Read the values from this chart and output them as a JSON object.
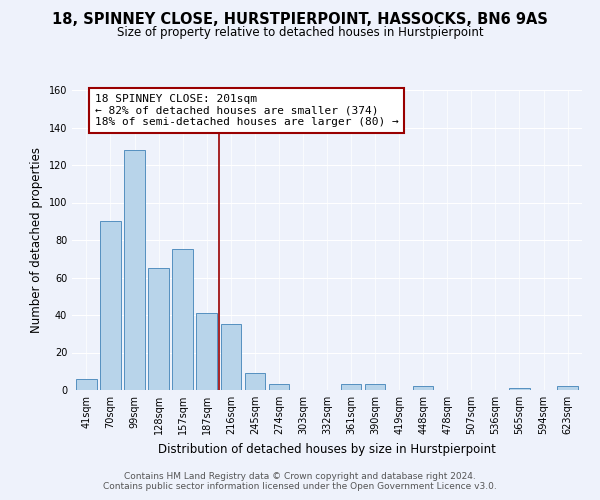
{
  "title": "18, SPINNEY CLOSE, HURSTPIERPOINT, HASSOCKS, BN6 9AS",
  "subtitle": "Size of property relative to detached houses in Hurstpierpoint",
  "xlabel": "Distribution of detached houses by size in Hurstpierpoint",
  "ylabel": "Number of detached properties",
  "categories": [
    "41sqm",
    "70sqm",
    "99sqm",
    "128sqm",
    "157sqm",
    "187sqm",
    "216sqm",
    "245sqm",
    "274sqm",
    "303sqm",
    "332sqm",
    "361sqm",
    "390sqm",
    "419sqm",
    "448sqm",
    "478sqm",
    "507sqm",
    "536sqm",
    "565sqm",
    "594sqm",
    "623sqm"
  ],
  "values": [
    6,
    90,
    128,
    65,
    75,
    41,
    35,
    9,
    3,
    0,
    0,
    3,
    3,
    0,
    2,
    0,
    0,
    0,
    1,
    0,
    2
  ],
  "bar_color": "#b8d4ea",
  "bar_edge_color": "#5590c0",
  "vline_x_index": 5.5,
  "vline_color": "#990000",
  "annotation_line1": "18 SPINNEY CLOSE: 201sqm",
  "annotation_line2": "← 82% of detached houses are smaller (374)",
  "annotation_line3": "18% of semi-detached houses are larger (80) →",
  "annotation_box_color": "#ffffff",
  "annotation_box_edge_color": "#990000",
  "ylim": [
    0,
    160
  ],
  "yticks": [
    0,
    20,
    40,
    60,
    80,
    100,
    120,
    140,
    160
  ],
  "footer1": "Contains HM Land Registry data © Crown copyright and database right 2024.",
  "footer2": "Contains public sector information licensed under the Open Government Licence v3.0.",
  "bg_color": "#eef2fb",
  "title_fontsize": 10.5,
  "subtitle_fontsize": 8.5,
  "axis_label_fontsize": 8.5,
  "tick_fontsize": 7,
  "annotation_fontsize": 8,
  "footer_fontsize": 6.5
}
